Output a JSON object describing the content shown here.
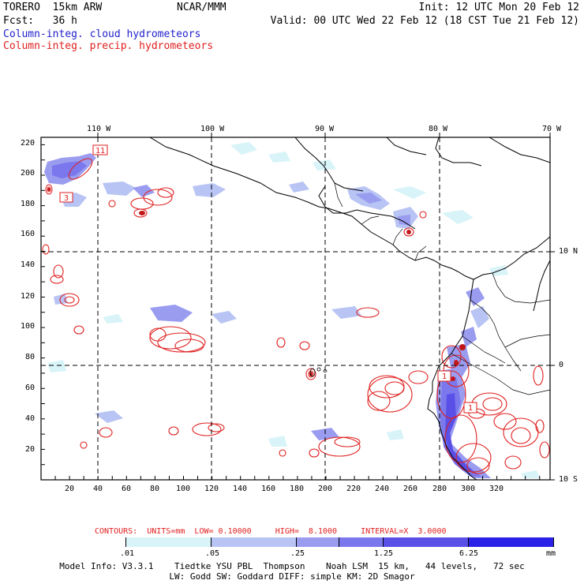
{
  "header": {
    "model_name": "TORERO  15km ARW",
    "org": "NCAR/MMM",
    "init": "Init: 12 UTC Mon 20 Feb 12",
    "fcst": "Fcst:   36 h",
    "valid": "Valid: 00 UTC Wed 22 Feb 12 (18 CST Tue 21 Feb 12)",
    "field1": "Column-integ. cloud hydrometeors",
    "field2": "Column-integ. precip. hydrometeors"
  },
  "colors": {
    "cloud": "#2222cc",
    "precip": "#e02020"
  },
  "axes": {
    "top_lon": [
      "110 W",
      "100 W",
      "90 W",
      "80 W",
      "70 W"
    ],
    "right_lat": [
      "10 N",
      "0",
      "10 S"
    ],
    "left_y": [
      "220",
      "200",
      "180",
      "160",
      "140",
      "120",
      "100",
      "80",
      "60",
      "40",
      "20"
    ],
    "bottom_x": [
      "20",
      "40",
      "60",
      "80",
      "100",
      "120",
      "140",
      "160",
      "180",
      "200",
      "220",
      "240",
      "260",
      "280",
      "300",
      "320"
    ]
  },
  "boxes": [
    "11",
    "3",
    "1",
    "1"
  ],
  "legend": {
    "contours_line": "CONTOURS:  UNITS=mm  LOW= 0.10000     HIGH=  8.1000     INTERVAL=X  3.0000",
    "levels": [
      ".01",
      ".05",
      ".25",
      "1.25",
      "6.25"
    ],
    "unit": "mm",
    "shade_colors": [
      "#ffffff",
      "#d8f4f8",
      "#b8c4f4",
      "#9a9cf0",
      "#7a78ec",
      "#5a50e8",
      "#2a20e8"
    ]
  },
  "footer": {
    "line1": "Model Info: V3.3.1    Tiedtke YSU PBL  Thompson    Noah LSM  15 km,   44 levels,   72 sec",
    "line2": "LW: Godd SW: Goddard DIFF: simple KM: 2D Smagor"
  }
}
